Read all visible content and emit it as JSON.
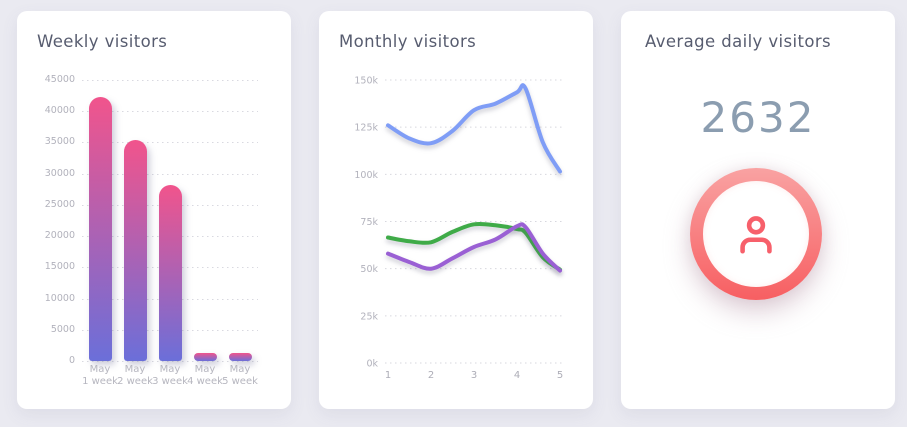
{
  "page_bg": "#eaeaf1",
  "chart_data": [
    {
      "type": "bar",
      "title": "Weekly visitors",
      "categories": [
        "May 1 week",
        "May 2 week",
        "May 3 week",
        "May 4 week",
        "May 5 week"
      ],
      "values": [
        42300,
        35400,
        28200,
        1300,
        1300
      ],
      "xlabel": "",
      "ylabel": "",
      "ylim": [
        0,
        45000
      ],
      "ytick_step": 5000,
      "grid": true,
      "grid_style": "dotted",
      "legend": "none",
      "bar_gradient_top": "#f1548c",
      "bar_gradient_bottom": "#6b6fd9"
    },
    {
      "type": "line",
      "title": "Monthly visitors",
      "x": [
        1,
        1.5,
        2,
        2.5,
        3,
        3.5,
        4,
        4.2,
        4.6,
        5
      ],
      "xticks": [
        1,
        2,
        3,
        4,
        5
      ],
      "unit": "thousands of visitors",
      "ylim": [
        0,
        150
      ],
      "ytick_step": 25,
      "ytick_suffix": "k",
      "grid": true,
      "grid_style": "dotted",
      "legend": "none",
      "series": [
        {
          "name": "blue",
          "color": "#7f9df6",
          "values": [
            126,
            119,
            116.5,
            123,
            134,
            137.5,
            143.5,
            145.5,
            117,
            101.5
          ]
        },
        {
          "name": "green",
          "color": "#3fab48",
          "values": [
            66.5,
            64.5,
            64,
            69.5,
            73.5,
            73,
            71,
            69,
            56,
            49.5
          ]
        },
        {
          "name": "purple",
          "color": "#9a60d4",
          "values": [
            58,
            53.5,
            50,
            55.5,
            61.5,
            65.5,
            72.5,
            72,
            58,
            49
          ]
        }
      ]
    },
    {
      "type": "kpi",
      "title": "Average daily visitors",
      "value": 2632,
      "value_color": "#8b9db0",
      "icon": "person-icon",
      "icon_color": "#f7606b",
      "ring_gradient_top": "#f9a2a2",
      "ring_gradient_bottom": "#f75f62"
    }
  ]
}
